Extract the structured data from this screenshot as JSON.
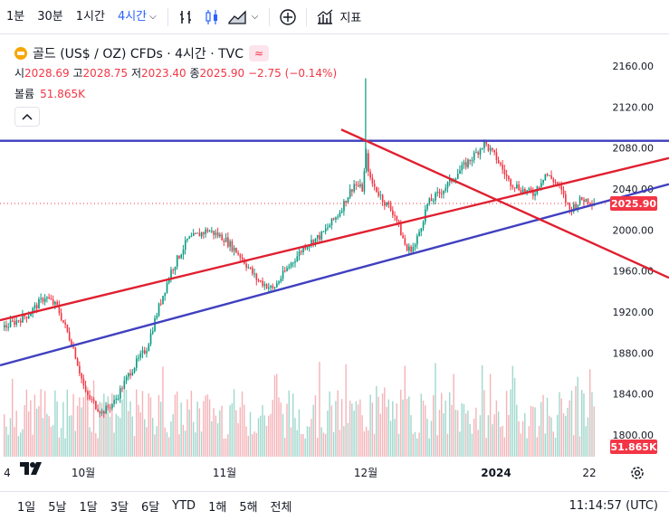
{
  "toolbar": {
    "timeframes": [
      "1분",
      "30분",
      "1시간",
      "4시간"
    ],
    "active_timeframe": "4시간",
    "indicators_label": "지표",
    "colors": {
      "active": "#2962ff"
    }
  },
  "legend": {
    "symbol": "골드 (US$ / OZ) CFDs · 4시간 · TVC",
    "open_label": "시",
    "open": "2028.69",
    "high_label": "고",
    "high": "2028.75",
    "low_label": "저",
    "low": "2023.40",
    "close_label": "종",
    "close": "2025.90",
    "change": "−2.75 (−0.14%)",
    "volume_label": "볼륨",
    "volume": "51.865K",
    "wave_icon": "≈"
  },
  "chart_data": {
    "type": "candlestick",
    "symbol": "골드 (US$ / OZ) CFDs",
    "interval": "4시간",
    "price_axis": {
      "ticks": [
        2160,
        2120,
        2080,
        2040,
        2000,
        1960,
        1920,
        1880,
        1840,
        1800
      ],
      "tick_labels": [
        "2160.00",
        "2120.00",
        "2080.00",
        "2040.00",
        "2000.00",
        "1960.00",
        "1920.00",
        "1880.00",
        "1840.00",
        "1800.00"
      ],
      "range": [
        1785,
        2175
      ]
    },
    "time_axis": {
      "labels": [
        "4",
        "10월",
        "11월",
        "12월",
        "2024",
        "22"
      ],
      "bold_label": "2024"
    },
    "current_price": "2025.90",
    "current_volume": "51.865K",
    "price_path": [
      {
        "t": 0,
        "p": 1905
      },
      {
        "t": 6,
        "p": 1918
      },
      {
        "t": 10,
        "p": 1935
      },
      {
        "t": 13,
        "p": 1925
      },
      {
        "t": 17,
        "p": 1885
      },
      {
        "t": 20,
        "p": 1840
      },
      {
        "t": 24,
        "p": 1822
      },
      {
        "t": 27,
        "p": 1832
      },
      {
        "t": 31,
        "p": 1862
      },
      {
        "t": 35,
        "p": 1885
      },
      {
        "t": 38,
        "p": 1925
      },
      {
        "t": 41,
        "p": 1960
      },
      {
        "t": 45,
        "p": 1990
      },
      {
        "t": 50,
        "p": 2000
      },
      {
        "t": 54,
        "p": 1992
      },
      {
        "t": 58,
        "p": 1975
      },
      {
        "t": 62,
        "p": 1952
      },
      {
        "t": 66,
        "p": 1942
      },
      {
        "t": 70,
        "p": 1965
      },
      {
        "t": 74,
        "p": 1985
      },
      {
        "t": 78,
        "p": 1995
      },
      {
        "t": 82,
        "p": 2015
      },
      {
        "t": 86,
        "p": 2045
      },
      {
        "t": 88,
        "p": 2040
      },
      {
        "t": 89,
        "p": 2072
      },
      {
        "t": 90,
        "p": 2048
      },
      {
        "t": 93,
        "p": 2030
      },
      {
        "t": 96,
        "p": 2015
      },
      {
        "t": 99,
        "p": 1980
      },
      {
        "t": 101,
        "p": 1985
      },
      {
        "t": 104,
        "p": 2025
      },
      {
        "t": 108,
        "p": 2040
      },
      {
        "t": 112,
        "p": 2058
      },
      {
        "t": 116,
        "p": 2075
      },
      {
        "t": 118,
        "p": 2085
      },
      {
        "t": 121,
        "p": 2070
      },
      {
        "t": 124,
        "p": 2048
      },
      {
        "t": 127,
        "p": 2040
      },
      {
        "t": 130,
        "p": 2035
      },
      {
        "t": 133,
        "p": 2055
      },
      {
        "t": 136,
        "p": 2045
      },
      {
        "t": 139,
        "p": 2020
      },
      {
        "t": 142,
        "p": 2030
      },
      {
        "t": 145,
        "p": 2028
      }
    ],
    "spike": {
      "t": 89,
      "high": 2148
    },
    "trendlines": [
      {
        "name": "horizontal-resistance",
        "color": "#3d3dbf",
        "from": {
          "t": 0,
          "p": 2087
        },
        "to": {
          "t": 146,
          "p": 2087
        }
      },
      {
        "name": "blue-support",
        "color": "#4040c0",
        "from": {
          "t": 0,
          "p": 1868
        },
        "to": {
          "t": 146,
          "p": 2040
        }
      },
      {
        "name": "red-channel",
        "color": "#e02030",
        "from": {
          "t": 0,
          "p": 1912
        },
        "to": {
          "t": 146,
          "p": 2066
        }
      },
      {
        "name": "red-descending",
        "color": "#e02030",
        "from": {
          "t": 83,
          "p": 2098
        },
        "to": {
          "t": 146,
          "p": 1962
        }
      }
    ]
  },
  "footer": {
    "ranges": [
      "1일",
      "5날",
      "1달",
      "3달",
      "6달",
      "YTD",
      "1해",
      "5해",
      "전체"
    ],
    "clock": "11:14:57 (UTC)"
  }
}
